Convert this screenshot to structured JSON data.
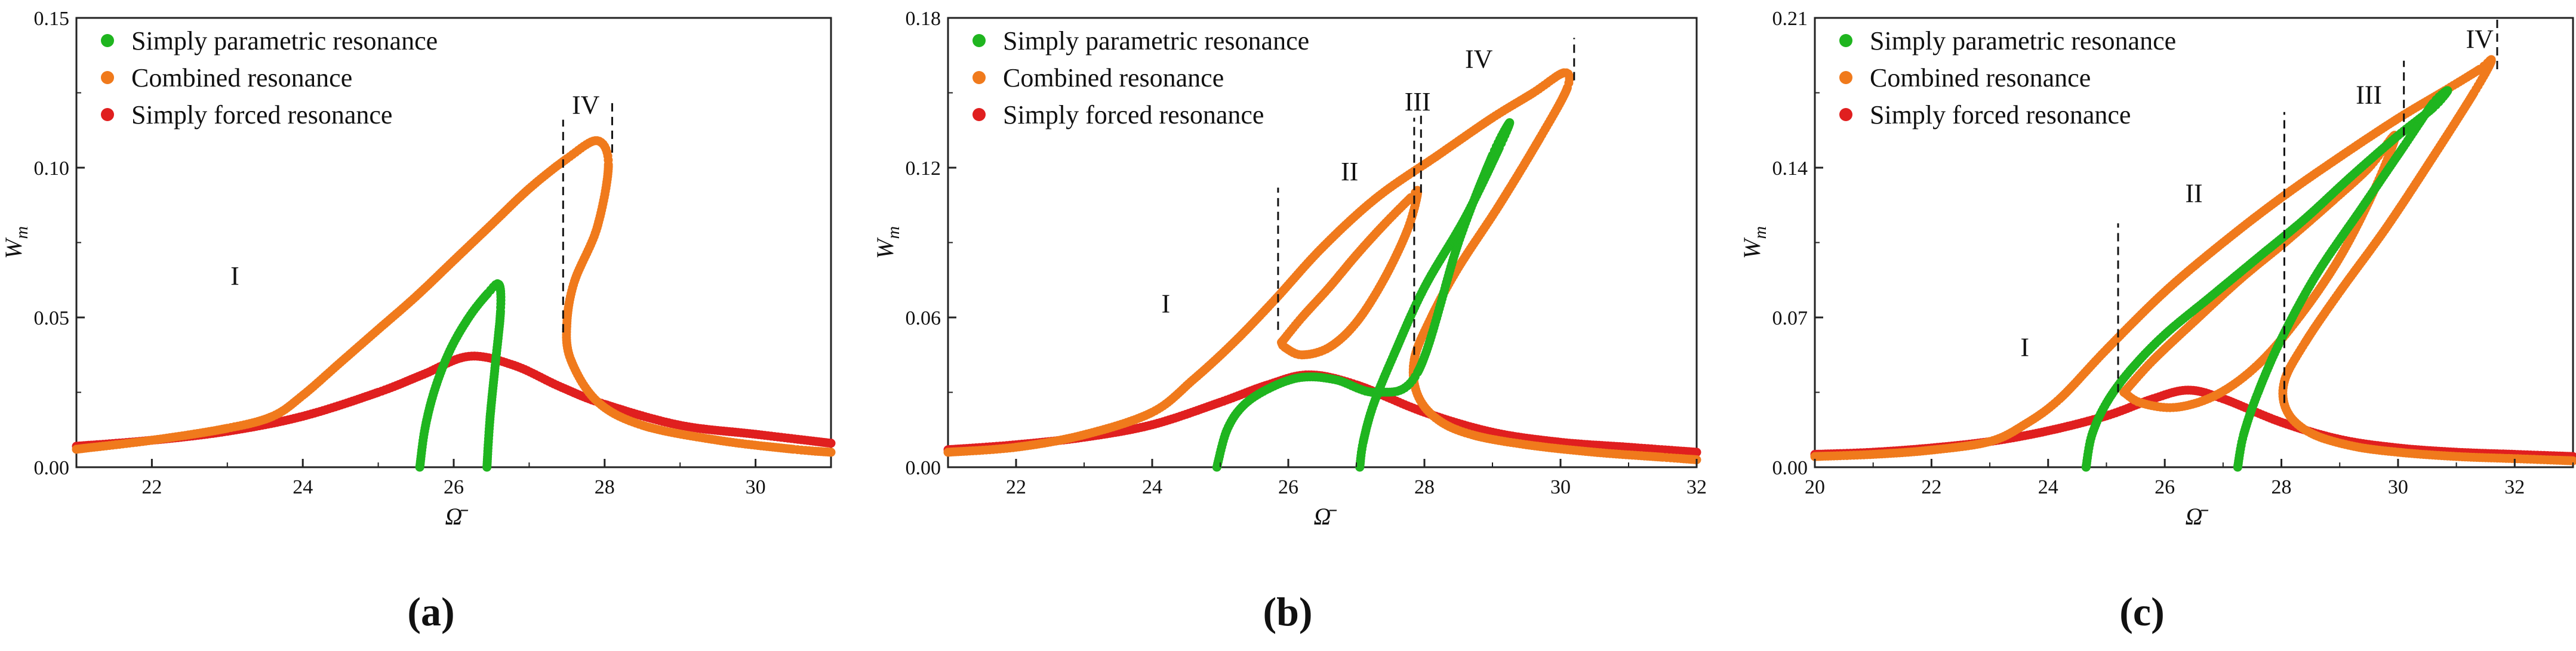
{
  "chart_data": [
    {
      "type": "scatter",
      "panel_label": "(a)",
      "xlabel": "Ω̄",
      "ylabel": "W_m",
      "xlim": [
        21,
        31
      ],
      "ylim": [
        0,
        0.15
      ],
      "xticks": [
        22,
        24,
        26,
        28,
        30
      ],
      "yticks": [
        0.0,
        0.05,
        0.1,
        0.15
      ],
      "ytick_labels": [
        "0.00",
        "0.05",
        "0.10",
        "0.15"
      ],
      "legend": [
        "Simply parametric resonance",
        "Combined resonance",
        "Simply forced resonance"
      ],
      "regions": [
        {
          "label": "I",
          "x": 23.1,
          "y": 0.061
        },
        {
          "label": "IV",
          "x": 27.75,
          "y": 0.118
        }
      ],
      "dashed_lines": [
        {
          "x": 27.45,
          "y0": 0.045,
          "y1": 0.116
        },
        {
          "x": 28.1,
          "y0": 0.105,
          "y1": 0.122
        }
      ],
      "series": [
        {
          "name": "Simply forced resonance",
          "color": "#e01f1f",
          "x": [
            21,
            22,
            23,
            24,
            25,
            25.6,
            26.2,
            26.8,
            27.4,
            28,
            29,
            30,
            31
          ],
          "y": [
            0.007,
            0.009,
            0.012,
            0.017,
            0.025,
            0.031,
            0.037,
            0.034,
            0.027,
            0.021,
            0.014,
            0.011,
            0.008
          ]
        },
        {
          "name": "Combined resonance",
          "color": "#f07a1c",
          "x": [
            21,
            22,
            23,
            23.6,
            24,
            24.5,
            25,
            25.5,
            26,
            26.5,
            27,
            27.5,
            27.9,
            28.05,
            27.9,
            27.6,
            27.5,
            27.55,
            27.9,
            28.5,
            29.5,
            30.5,
            31
          ],
          "y": [
            0.006,
            0.009,
            0.013,
            0.017,
            0.024,
            0.035,
            0.046,
            0.057,
            0.069,
            0.081,
            0.093,
            0.103,
            0.109,
            0.101,
            0.08,
            0.062,
            0.048,
            0.036,
            0.022,
            0.014,
            0.009,
            0.006,
            0.005
          ]
        },
        {
          "name": "Simply parametric resonance",
          "color": "#1fb51f",
          "x": [
            25.55,
            25.62,
            25.75,
            25.95,
            26.2,
            26.45,
            26.6,
            26.62,
            26.55,
            26.48,
            26.44
          ],
          "y": [
            0.0,
            0.013,
            0.026,
            0.039,
            0.05,
            0.058,
            0.061,
            0.052,
            0.034,
            0.016,
            0.0
          ]
        }
      ]
    },
    {
      "type": "scatter",
      "panel_label": "(b)",
      "xlabel": "Ω̄",
      "ylabel": "W_m",
      "xlim": [
        21,
        32
      ],
      "ylim": [
        0,
        0.18
      ],
      "xticks": [
        22,
        24,
        26,
        28,
        30,
        32
      ],
      "yticks": [
        0.0,
        0.06,
        0.12,
        0.18
      ],
      "ytick_labels": [
        "0.00",
        "0.06",
        "0.12",
        "0.18"
      ],
      "legend": [
        "Simply parametric resonance",
        "Combined resonance",
        "Simply forced resonance"
      ],
      "regions": [
        {
          "label": "I",
          "x": 24.2,
          "y": 0.062
        },
        {
          "label": "II",
          "x": 26.9,
          "y": 0.115
        },
        {
          "label": "III",
          "x": 27.9,
          "y": 0.143
        },
        {
          "label": "IV",
          "x": 28.8,
          "y": 0.16
        }
      ],
      "dashed_lines": [
        {
          "x": 25.85,
          "y0": 0.055,
          "y1": 0.112
        },
        {
          "x": 27.85,
          "y0": 0.045,
          "y1": 0.14
        },
        {
          "x": 27.95,
          "y0": 0.11,
          "y1": 0.142
        },
        {
          "x": 30.2,
          "y0": 0.155,
          "y1": 0.172
        }
      ],
      "series": [
        {
          "name": "Simply forced resonance",
          "color": "#e01f1f",
          "x": [
            21,
            22,
            23,
            24,
            25,
            25.7,
            26.3,
            27,
            28,
            29,
            30,
            31,
            32
          ],
          "y": [
            0.007,
            0.009,
            0.012,
            0.017,
            0.026,
            0.033,
            0.037,
            0.033,
            0.022,
            0.014,
            0.01,
            0.008,
            0.006
          ]
        },
        {
          "name": "Combined resonance (outer branch)",
          "color": "#f07a1c",
          "x": [
            21,
            22,
            23,
            24,
            24.6,
            25.2,
            25.8,
            26.5,
            27.3,
            28.2,
            29,
            29.6,
            30.05,
            30.1,
            29.7,
            29.1,
            28.5,
            28.1,
            27.85,
            27.9,
            28.2,
            28.7,
            29.5,
            30.5,
            31.5,
            32
          ],
          "y": [
            0.006,
            0.008,
            0.013,
            0.022,
            0.035,
            0.05,
            0.067,
            0.088,
            0.108,
            0.125,
            0.14,
            0.15,
            0.158,
            0.152,
            0.132,
            0.105,
            0.08,
            0.06,
            0.043,
            0.029,
            0.019,
            0.013,
            0.009,
            0.006,
            0.004,
            0.003
          ]
        },
        {
          "name": "Combined resonance (inner loop)",
          "color": "#f07a1c",
          "x": [
            25.9,
            26.2,
            26.6,
            27.0,
            27.4,
            27.8,
            27.9,
            27.75,
            27.4,
            27.0,
            26.6,
            26.2,
            25.95,
            25.9
          ],
          "y": [
            0.05,
            0.06,
            0.072,
            0.085,
            0.097,
            0.108,
            0.11,
            0.095,
            0.075,
            0.058,
            0.048,
            0.045,
            0.048,
            0.05
          ]
        },
        {
          "name": "Simply parametric resonance",
          "color": "#1fb51f",
          "x": [
            24.95,
            25.1,
            25.35,
            25.75,
            26.2,
            26.7,
            27.3,
            27.9,
            28.5,
            29.0,
            29.25,
            29.1,
            28.6,
            28.0,
            27.55,
            27.25,
            27.1,
            27.05
          ],
          "y": [
            0.0,
            0.015,
            0.025,
            0.032,
            0.036,
            0.035,
            0.03,
            0.038,
            0.09,
            0.125,
            0.138,
            0.128,
            0.1,
            0.072,
            0.045,
            0.025,
            0.01,
            0.0
          ]
        }
      ]
    },
    {
      "type": "scatter",
      "panel_label": "(c)",
      "xlabel": "Ω̄",
      "ylabel": "W_m",
      "xlim": [
        20,
        33
      ],
      "ylim": [
        0,
        0.21
      ],
      "xticks": [
        20,
        22,
        24,
        26,
        28,
        30,
        32
      ],
      "yticks": [
        0.0,
        0.07,
        0.14,
        0.21
      ],
      "ytick_labels": [
        "0.00",
        "0.07",
        "0.14",
        "0.21"
      ],
      "legend": [
        "Simply parametric resonance",
        "Combined resonance",
        "Simply forced resonance"
      ],
      "regions": [
        {
          "label": "I",
          "x": 23.6,
          "y": 0.052
        },
        {
          "label": "II",
          "x": 26.5,
          "y": 0.124
        },
        {
          "label": "III",
          "x": 29.5,
          "y": 0.17
        },
        {
          "label": "IV",
          "x": 31.4,
          "y": 0.196
        }
      ],
      "dashed_lines": [
        {
          "x": 25.2,
          "y0": 0.035,
          "y1": 0.114
        },
        {
          "x": 28.05,
          "y0": 0.03,
          "y1": 0.166
        },
        {
          "x": 30.1,
          "y0": 0.155,
          "y1": 0.19
        },
        {
          "x": 31.7,
          "y0": 0.186,
          "y1": 0.21
        }
      ],
      "series": [
        {
          "name": "Simply forced resonance",
          "color": "#e01f1f",
          "x": [
            20,
            21,
            22,
            23,
            24,
            25,
            25.8,
            26.4,
            27,
            28,
            29,
            30,
            31,
            32,
            33
          ],
          "y": [
            0.006,
            0.007,
            0.009,
            0.012,
            0.017,
            0.024,
            0.032,
            0.036,
            0.032,
            0.021,
            0.013,
            0.009,
            0.007,
            0.006,
            0.005
          ]
        },
        {
          "name": "Combined resonance (outer branch)",
          "color": "#f07a1c",
          "x": [
            20,
            21,
            22,
            23,
            23.6,
            24.2,
            25,
            26,
            27,
            28,
            29,
            30,
            30.8,
            31.4,
            31.6,
            31.3,
            30.6,
            29.8,
            29,
            28.4,
            28.05,
            28.1,
            28.5,
            29.2,
            30,
            31,
            32,
            33
          ],
          "y": [
            0.005,
            0.006,
            0.008,
            0.012,
            0.02,
            0.032,
            0.055,
            0.082,
            0.105,
            0.126,
            0.145,
            0.163,
            0.176,
            0.186,
            0.19,
            0.175,
            0.145,
            0.112,
            0.082,
            0.058,
            0.04,
            0.026,
            0.016,
            0.01,
            0.007,
            0.005,
            0.004,
            0.003
          ]
        },
        {
          "name": "Combined resonance (inner loop)",
          "color": "#f07a1c",
          "x": [
            25.3,
            25.8,
            26.5,
            27.3,
            28.1,
            28.9,
            29.5,
            29.95,
            29.6,
            29,
            28.3,
            27.6,
            26.9,
            26.2,
            25.6,
            25.3
          ],
          "y": [
            0.035,
            0.05,
            0.068,
            0.088,
            0.106,
            0.125,
            0.14,
            0.155,
            0.13,
            0.098,
            0.07,
            0.048,
            0.034,
            0.028,
            0.03,
            0.035
          ]
        },
        {
          "name": "Simply parametric resonance",
          "color": "#1fb51f",
          "x": [
            24.65,
            24.75,
            25.0,
            25.4,
            26.0,
            26.8,
            27.6,
            28.4,
            29.2,
            30,
            30.6,
            30.85,
            30.6,
            30.1,
            29.4,
            28.6,
            28.0,
            27.6,
            27.35,
            27.25
          ],
          "y": [
            0.0,
            0.015,
            0.03,
            0.045,
            0.062,
            0.08,
            0.098,
            0.116,
            0.136,
            0.155,
            0.168,
            0.176,
            0.17,
            0.15,
            0.122,
            0.09,
            0.06,
            0.035,
            0.015,
            0.0
          ]
        }
      ]
    }
  ]
}
